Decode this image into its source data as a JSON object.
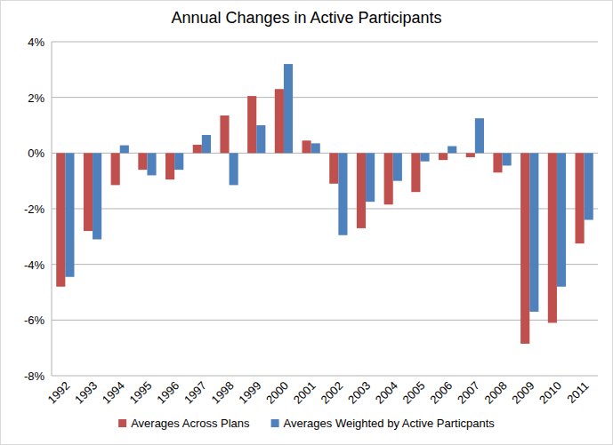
{
  "chart_data": {
    "type": "bar",
    "title": "Annual Changes in Active Participants",
    "categories": [
      "1992",
      "1993",
      "1994",
      "1995",
      "1996",
      "1997",
      "1998",
      "1999",
      "2000",
      "2001",
      "2002",
      "2003",
      "2004",
      "2005",
      "2006",
      "2007",
      "2008",
      "2009",
      "2010",
      "2011"
    ],
    "series": [
      {
        "name": "Averages Across Plans",
        "color": "#c0504d",
        "values": [
          -4.8,
          -2.8,
          -1.15,
          -0.6,
          -0.95,
          0.3,
          1.35,
          2.05,
          2.3,
          0.45,
          -1.1,
          -2.7,
          -1.85,
          -1.4,
          -0.25,
          -0.15,
          -0.7,
          -6.85,
          -6.1,
          -3.25
        ]
      },
      {
        "name": "Averages Weighted by Active Particpants",
        "color": "#4f81bd",
        "values": [
          -4.45,
          -3.1,
          0.28,
          -0.8,
          -0.6,
          0.65,
          -1.15,
          1.0,
          3.2,
          0.35,
          -2.95,
          -1.75,
          -1.0,
          -0.3,
          0.25,
          1.25,
          -0.45,
          -5.7,
          -4.8,
          -2.4
        ]
      }
    ],
    "ylim": [
      -8,
      4
    ],
    "yticks": [
      {
        "value": -8,
        "label": "-8%"
      },
      {
        "value": -6,
        "label": "-6%"
      },
      {
        "value": -4,
        "label": "-4%"
      },
      {
        "value": -2,
        "label": "-2%"
      },
      {
        "value": 0,
        "label": "0%"
      },
      {
        "value": 2,
        "label": "2%"
      },
      {
        "value": 4,
        "label": "4%"
      }
    ],
    "grid": true,
    "legend": "bottom"
  }
}
